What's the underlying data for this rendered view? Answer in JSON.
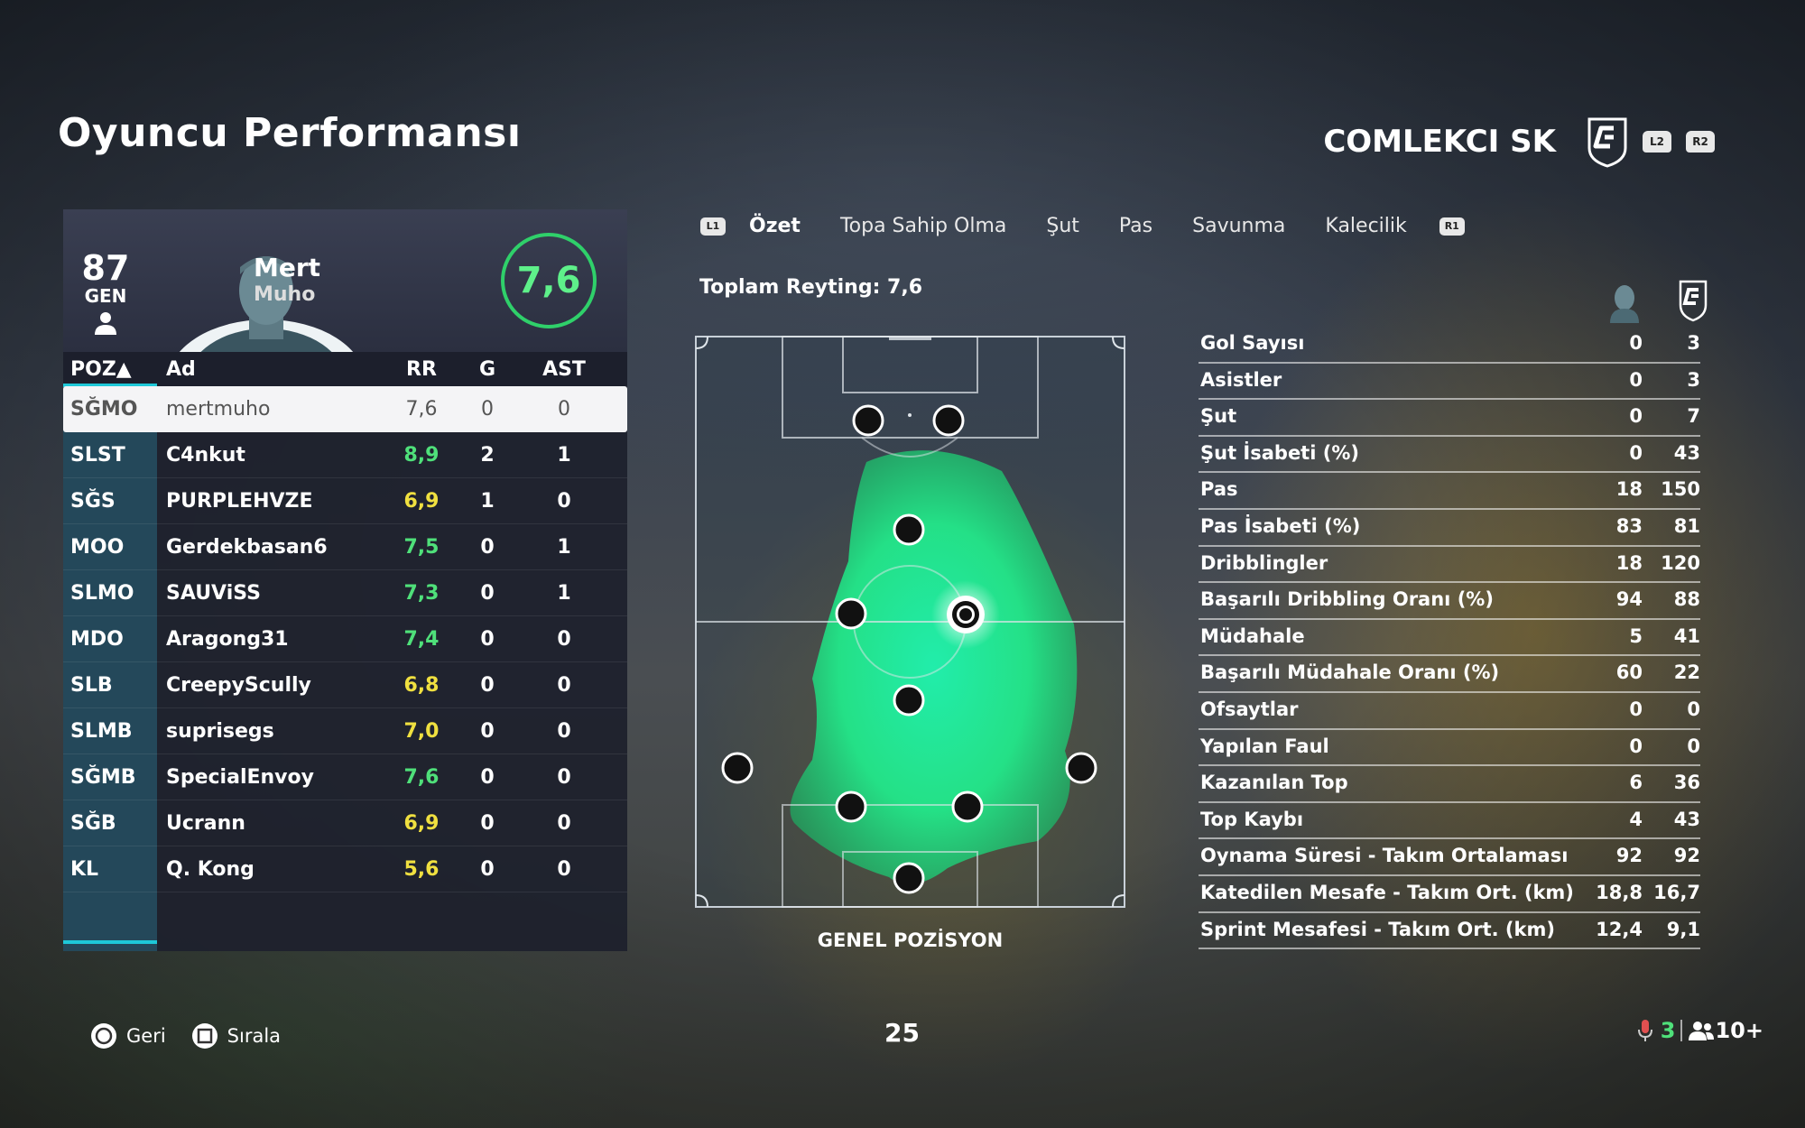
{
  "page_title": "Oyuncu Performansı",
  "club": {
    "name": "COMLEKCI SK",
    "button_l2": "L2",
    "button_r2": "R2"
  },
  "player": {
    "overall": "87",
    "overall_label": "GEN",
    "first_name": "Mert",
    "last_name": "Muho",
    "rating": "7,6"
  },
  "table": {
    "headers": {
      "poz": "POZ▲",
      "ad": "Ad",
      "rr": "RR",
      "g": "G",
      "ast": "AST"
    },
    "rows": [
      {
        "poz": "SĞMO",
        "ad": "mertmuho",
        "rr": "7,6",
        "g": "0",
        "ast": "0",
        "rr_color": "#555555"
      },
      {
        "poz": "SLST",
        "ad": "C4nkut",
        "rr": "8,9",
        "g": "2",
        "ast": "1",
        "rr_color": "#4fe07a"
      },
      {
        "poz": "SĞS",
        "ad": "PURPLEHVZE",
        "rr": "6,9",
        "g": "1",
        "ast": "0",
        "rr_color": "#f0e040"
      },
      {
        "poz": "MOO",
        "ad": "Gerdekbasan6",
        "rr": "7,5",
        "g": "0",
        "ast": "1",
        "rr_color": "#4fe07a"
      },
      {
        "poz": "SLMO",
        "ad": "SAUViSS",
        "rr": "7,3",
        "g": "0",
        "ast": "1",
        "rr_color": "#4fe07a"
      },
      {
        "poz": "MDO",
        "ad": "Aragong31",
        "rr": "7,4",
        "g": "0",
        "ast": "0",
        "rr_color": "#4fe07a"
      },
      {
        "poz": "SLB",
        "ad": "CreepyScully",
        "rr": "6,8",
        "g": "0",
        "ast": "0",
        "rr_color": "#f0e040"
      },
      {
        "poz": "SLMB",
        "ad": "suprisegs",
        "rr": "7,0",
        "g": "0",
        "ast": "0",
        "rr_color": "#f0e040"
      },
      {
        "poz": "SĞMB",
        "ad": "SpecialEnvoy",
        "rr": "7,6",
        "g": "0",
        "ast": "0",
        "rr_color": "#4fe07a"
      },
      {
        "poz": "SĞB",
        "ad": "Ucrann",
        "rr": "6,9",
        "g": "0",
        "ast": "0",
        "rr_color": "#f0e040"
      },
      {
        "poz": "KL",
        "ad": "Q. Kong",
        "rr": "5,6",
        "g": "0",
        "ast": "0",
        "rr_color": "#f0e040"
      }
    ]
  },
  "tabs": {
    "l1": "L1",
    "r1": "R1",
    "items": [
      "Özet",
      "Topa Sahip Olma",
      "Şut",
      "Pas",
      "Savunma",
      "Kalecilik"
    ],
    "active": "Özet"
  },
  "total_rating": "Toplam Reyting: 7,6",
  "pitch_label": "GENEL POZİSYON",
  "stats": [
    {
      "label": "Gol Sayısı",
      "player": "0",
      "team": "3"
    },
    {
      "label": "Asistler",
      "player": "0",
      "team": "3"
    },
    {
      "label": "Şut",
      "player": "0",
      "team": "7"
    },
    {
      "label": "Şut İsabeti (%)",
      "player": "0",
      "team": "43"
    },
    {
      "label": "Pas",
      "player": "18",
      "team": "150"
    },
    {
      "label": "Pas İsabeti (%)",
      "player": "83",
      "team": "81"
    },
    {
      "label": "Dribblingler",
      "player": "18",
      "team": "120"
    },
    {
      "label": "Başarılı Dribbling Oranı (%)",
      "player": "94",
      "team": "88"
    },
    {
      "label": "Müdahale",
      "player": "5",
      "team": "41"
    },
    {
      "label": "Başarılı Müdahale Oranı (%)",
      "player": "60",
      "team": "22"
    },
    {
      "label": "Ofsaytlar",
      "player": "0",
      "team": "0"
    },
    {
      "label": "Yapılan Faul",
      "player": "0",
      "team": "0"
    },
    {
      "label": "Kazanılan Top",
      "player": "6",
      "team": "36"
    },
    {
      "label": "Top Kaybı",
      "player": "4",
      "team": "43"
    },
    {
      "label": "Oynama Süresi - Takım Ortalaması",
      "player": "92",
      "team": "92"
    },
    {
      "label": "Katedilen Mesafe - Takım Ort. (km)",
      "player": "18,8",
      "team": "16,7"
    },
    {
      "label": "Sprint Mesafesi - Takım Ort. (km)",
      "player": "12,4",
      "team": "9,1"
    }
  ],
  "footer": {
    "back_label": "Geri",
    "sort_label": "Sırala",
    "page_number": "25",
    "mic_count": "3",
    "party_count": "10+"
  },
  "colors": {
    "accent_cyan": "#1ec8d8",
    "rating_green": "#4fe07a",
    "rating_yellow": "#f0e040",
    "heatmap": "#22f0a0"
  }
}
